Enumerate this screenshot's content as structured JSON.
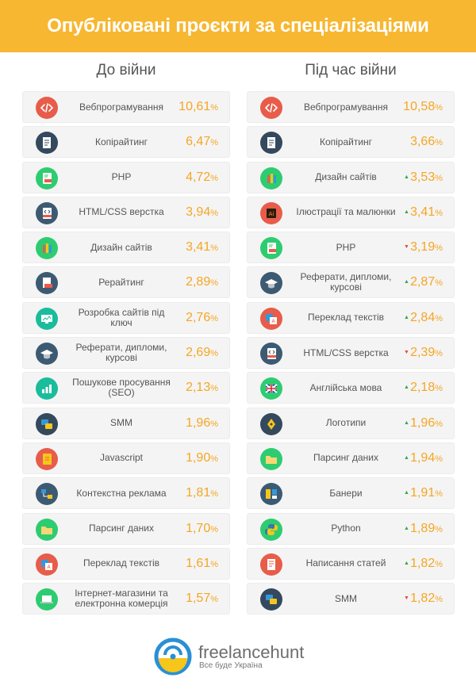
{
  "header": {
    "title": "Опубліковані проєкти за спеціалізаціями"
  },
  "columns": {
    "before": {
      "title": "До війни",
      "items": [
        {
          "label": "Вебпрограмування",
          "value": "10,61",
          "unit": "%",
          "icon": "code-icon",
          "color": "#e85c4a"
        },
        {
          "label": "Копірайтинг",
          "value": "6,47",
          "unit": "%",
          "icon": "document-icon",
          "color": "#34495e"
        },
        {
          "label": "PHP",
          "value": "4,72",
          "unit": "%",
          "icon": "php-file-icon",
          "color": "#2ecc71"
        },
        {
          "label": "HTML/CSS верстка",
          "value": "3,94",
          "unit": "%",
          "icon": "html-file-icon",
          "color": "#3d5a73"
        },
        {
          "label": "Дизайн сайтів",
          "value": "3,41",
          "unit": "%",
          "icon": "pencils-icon",
          "color": "#2ecc71"
        },
        {
          "label": "Рерайтинг",
          "value": "2,89",
          "unit": "%",
          "icon": "file-edit-icon",
          "color": "#3d5a73"
        },
        {
          "label": "Розробка сайтів під ключ",
          "value": "2,76",
          "unit": "%",
          "icon": "monitor-icon",
          "color": "#1abc9c"
        },
        {
          "label": "Реферати, дипломи, курсові",
          "value": "2,69",
          "unit": "%",
          "icon": "graduation-cap-icon",
          "color": "#3d5a73"
        },
        {
          "label": "Пошукове просування (SEO)",
          "value": "2,13",
          "unit": "%",
          "icon": "seo-chart-icon",
          "color": "#1abc9c"
        },
        {
          "label": "SMM",
          "value": "1,96",
          "unit": "%",
          "icon": "social-icon",
          "color": "#34495e"
        },
        {
          "label": "Javascript",
          "value": "1,90",
          "unit": "%",
          "icon": "js-file-icon",
          "color": "#e85c4a"
        },
        {
          "label": "Контекстна реклама",
          "value": "1,81",
          "unit": "%",
          "icon": "ads-network-icon",
          "color": "#3d5a73"
        },
        {
          "label": "Парсинг даних",
          "value": "1,70",
          "unit": "%",
          "icon": "folder-icon",
          "color": "#2ecc71"
        },
        {
          "label": "Переклад текстів",
          "value": "1,61",
          "unit": "%",
          "icon": "translate-icon",
          "color": "#e85c4a"
        },
        {
          "label": "Інтернет-магазини та електронна комерція",
          "value": "1,57",
          "unit": "%",
          "icon": "laptop-cart-icon",
          "color": "#2ecc71"
        }
      ]
    },
    "during": {
      "title": "Під час війни",
      "items": [
        {
          "label": "Вебпрограмування",
          "value": "10,58",
          "unit": "%",
          "trend": "",
          "icon": "code-icon",
          "color": "#e85c4a"
        },
        {
          "label": "Копірайтинг",
          "value": "3,66",
          "unit": "%",
          "trend": "",
          "icon": "document-icon",
          "color": "#34495e"
        },
        {
          "label": "Дизайн сайтів",
          "value": "3,53",
          "unit": "%",
          "trend": "up",
          "icon": "pencils-icon",
          "color": "#2ecc71"
        },
        {
          "label": "Ілюстрації та малюнки",
          "value": "3,41",
          "unit": "%",
          "trend": "up",
          "icon": "illustrator-icon",
          "color": "#e85c4a"
        },
        {
          "label": "PHP",
          "value": "3,19",
          "unit": "%",
          "trend": "down",
          "icon": "php-file-icon",
          "color": "#2ecc71"
        },
        {
          "label": "Реферати, дипломи, курсові",
          "value": "2,87",
          "unit": "%",
          "trend": "up",
          "icon": "graduation-cap-icon",
          "color": "#3d5a73"
        },
        {
          "label": "Переклад текстів",
          "value": "2,84",
          "unit": "%",
          "trend": "up",
          "icon": "translate-icon",
          "color": "#e85c4a"
        },
        {
          "label": "HTML/CSS верстка",
          "value": "2,39",
          "unit": "%",
          "trend": "down",
          "icon": "html-file-icon",
          "color": "#3d5a73"
        },
        {
          "label": "Англійська мова",
          "value": "2,18",
          "unit": "%",
          "trend": "up",
          "icon": "uk-flag-icon",
          "color": "#2ecc71"
        },
        {
          "label": "Логотипи",
          "value": "1,96",
          "unit": "%",
          "trend": "up",
          "icon": "pen-tool-icon",
          "color": "#34495e"
        },
        {
          "label": "Парсинг даних",
          "value": "1,94",
          "unit": "%",
          "trend": "up",
          "icon": "folder-icon",
          "color": "#2ecc71"
        },
        {
          "label": "Банери",
          "value": "1,91",
          "unit": "%",
          "trend": "up",
          "icon": "banners-icon",
          "color": "#3d5a73"
        },
        {
          "label": "Python",
          "value": "1,89",
          "unit": "%",
          "trend": "up",
          "icon": "python-icon",
          "color": "#2ecc71"
        },
        {
          "label": "Написання статей",
          "value": "1,82",
          "unit": "%",
          "trend": "up",
          "icon": "article-icon",
          "color": "#e85c4a"
        },
        {
          "label": "SMM",
          "value": "1,82",
          "unit": "%",
          "trend": "down",
          "icon": "social-icon",
          "color": "#34495e"
        }
      ]
    }
  },
  "footer": {
    "brand": "freelancehunt",
    "tagline": "Все буде Україна",
    "logo_icon": "freelancehunt-logo-icon",
    "logo_colors": {
      "blue": "#2a8fd6",
      "yellow": "#f7c61a"
    }
  },
  "colors": {
    "banner": "#f7b731",
    "value": "#f5a623",
    "up": "#2fa84f",
    "down": "#e74c3c"
  }
}
